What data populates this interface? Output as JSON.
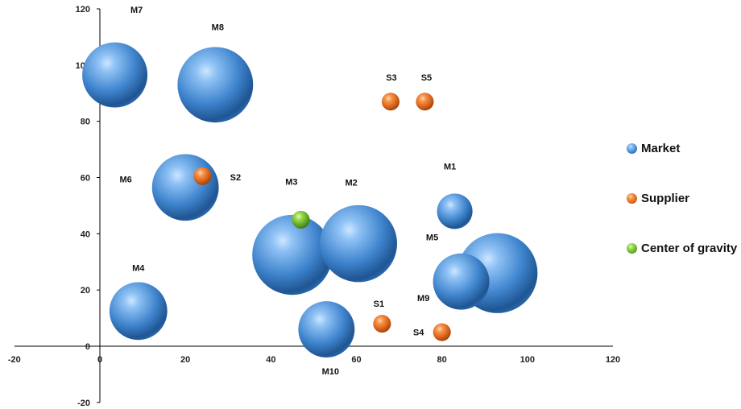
{
  "chart_data": {
    "type": "bubble",
    "x_axis": {
      "range": [
        -20,
        120
      ],
      "ticks": [
        "-20",
        "0",
        "20",
        "40",
        "60",
        "80",
        "100",
        "120"
      ]
    },
    "y_axis": {
      "range": [
        -20,
        120
      ],
      "ticks": [
        "-20",
        "0",
        "20",
        "40",
        "60",
        "80",
        "100",
        "120"
      ]
    },
    "grid": false,
    "legend": {
      "position": "right"
    },
    "series": [
      {
        "name": "Market",
        "color": "#4a8fd4",
        "points": [
          {
            "label": "M1",
            "x": 83,
            "y": 48,
            "r": 2.4
          },
          {
            "label": "M2",
            "x": 60.5,
            "y": 36.5,
            "r": 5.2
          },
          {
            "label": "M3",
            "x": 45,
            "y": 32.5,
            "r": 5.4
          },
          {
            "label": "M4",
            "x": 9,
            "y": 12.5,
            "r": 3.9
          },
          {
            "label": "M5",
            "x": 84.5,
            "y": 23,
            "r": 3.8
          },
          {
            "label": "M6",
            "x": 20,
            "y": 56.5,
            "r": 4.5
          },
          {
            "label": "M7",
            "x": 3.5,
            "y": 96.5,
            "r": 4.4
          },
          {
            "label": "M8",
            "x": 27,
            "y": 93,
            "r": 5.1
          },
          {
            "label": "M9",
            "x": 93,
            "y": 26,
            "r": 5.4
          },
          {
            "label": "M10",
            "x": 53,
            "y": 6,
            "r": 3.8
          }
        ]
      },
      {
        "name": "Supplier",
        "color": "#e8742a",
        "points": [
          {
            "label": "S1",
            "x": 66,
            "y": 8,
            "r": 1.2
          },
          {
            "label": "S2",
            "x": 24,
            "y": 60.5,
            "r": 1.2
          },
          {
            "label": "S3",
            "x": 68,
            "y": 87,
            "r": 1.2
          },
          {
            "label": "S4",
            "x": 80,
            "y": 5,
            "r": 1.2
          },
          {
            "label": "S5",
            "x": 76,
            "y": 87,
            "r": 1.2
          }
        ]
      },
      {
        "name": "Center of gravity",
        "color": "#7cc23a",
        "points": [
          {
            "label": "",
            "x": 47,
            "y": 45,
            "r": 1.2
          }
        ]
      }
    ]
  }
}
